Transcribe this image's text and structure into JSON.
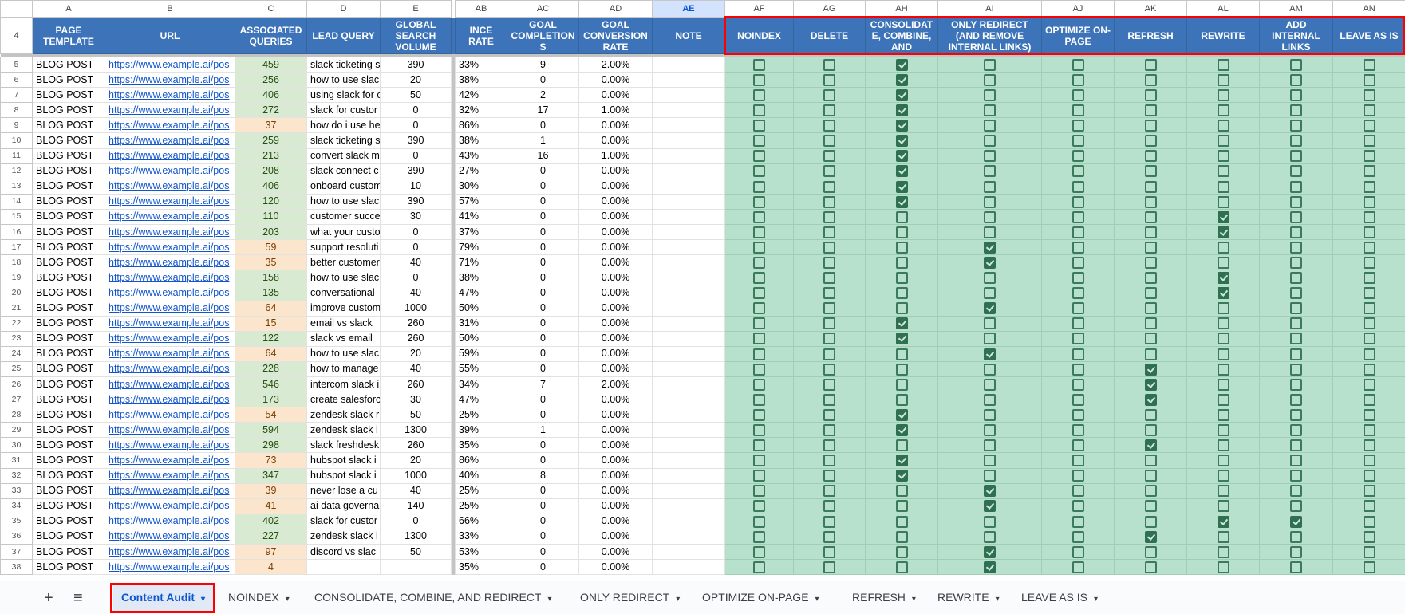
{
  "column_letters": [
    "A",
    "B",
    "C",
    "D",
    "E",
    "AB",
    "AC",
    "AD",
    "AE",
    "AF",
    "AG",
    "AH",
    "AI",
    "AJ",
    "AK",
    "AL",
    "AM",
    "AN"
  ],
  "selected_column": "AE",
  "header_row_number": "4",
  "headers": [
    "PAGE TEMPLATE",
    "URL",
    "ASSOCIATED QUERIES",
    "LEAD QUERY",
    "GLOBAL SEARCH VOLUME",
    "INCE RATE",
    "GOAL COMPLETION S",
    "GOAL CONVERSION RATE",
    "NOTE",
    "NOINDEX",
    "DELETE",
    "CONSOLIDAT E, COMBINE, AND",
    "ONLY REDIRECT (AND REMOVE INTERNAL LINKS)",
    "OPTIMIZE ON-PAGE",
    "REFRESH",
    "REWRITE",
    "ADD INTERNAL LINKS",
    "LEAVE AS IS"
  ],
  "action_columns": [
    "AF",
    "AG",
    "AH",
    "AI",
    "AJ",
    "AK",
    "AL",
    "AM",
    "AN"
  ],
  "colors": {
    "header_blue": "#3d74b9",
    "queries_high": "#d9ead3",
    "queries_low": "#fce5cd",
    "checkbox_area": "#b7e1cd",
    "highlight_box": "#ff0000"
  },
  "rows": [
    {
      "n": "5",
      "template": "BLOG POST",
      "url": "https://www.example.ai/pos",
      "queries": "459",
      "fill": "green",
      "lead": "slack ticketing s",
      "volume": "390",
      "bounce": "33%",
      "goals": "9",
      "conv": "2.00%",
      "note": "",
      "checked": [
        "AH"
      ]
    },
    {
      "n": "6",
      "template": "BLOG POST",
      "url": "https://www.example.ai/pos",
      "queries": "256",
      "fill": "green",
      "lead": "how to use slac",
      "volume": "20",
      "bounce": "38%",
      "goals": "0",
      "conv": "0.00%",
      "note": "",
      "checked": [
        "AH"
      ]
    },
    {
      "n": "7",
      "template": "BLOG POST",
      "url": "https://www.example.ai/pos",
      "queries": "406",
      "fill": "green",
      "lead": "using slack for c",
      "volume": "50",
      "bounce": "42%",
      "goals": "2",
      "conv": "0.00%",
      "note": "",
      "checked": [
        "AH"
      ]
    },
    {
      "n": "8",
      "template": "BLOG POST",
      "url": "https://www.example.ai/pos",
      "queries": "272",
      "fill": "green",
      "lead": "slack for custor",
      "volume": "0",
      "bounce": "32%",
      "goals": "17",
      "conv": "1.00%",
      "note": "",
      "checked": [
        "AH"
      ]
    },
    {
      "n": "9",
      "template": "BLOG POST",
      "url": "https://www.example.ai/pos",
      "queries": "37",
      "fill": "orange",
      "lead": "how do i use he",
      "volume": "0",
      "bounce": "86%",
      "goals": "0",
      "conv": "0.00%",
      "note": "",
      "checked": [
        "AH"
      ]
    },
    {
      "n": "10",
      "template": "BLOG POST",
      "url": "https://www.example.ai/pos",
      "queries": "259",
      "fill": "green",
      "lead": "slack ticketing s",
      "volume": "390",
      "bounce": "38%",
      "goals": "1",
      "conv": "0.00%",
      "note": "",
      "checked": [
        "AH"
      ]
    },
    {
      "n": "11",
      "template": "BLOG POST",
      "url": "https://www.example.ai/pos",
      "queries": "213",
      "fill": "green",
      "lead": "convert slack m",
      "volume": "0",
      "bounce": "43%",
      "goals": "16",
      "conv": "1.00%",
      "note": "",
      "checked": [
        "AH"
      ]
    },
    {
      "n": "12",
      "template": "BLOG POST",
      "url": "https://www.example.ai/pos",
      "queries": "208",
      "fill": "green",
      "lead": "slack connect c",
      "volume": "390",
      "bounce": "27%",
      "goals": "0",
      "conv": "0.00%",
      "note": "",
      "checked": [
        "AH"
      ]
    },
    {
      "n": "13",
      "template": "BLOG POST",
      "url": "https://www.example.ai/pos",
      "queries": "406",
      "fill": "green",
      "lead": "onboard custom",
      "volume": "10",
      "bounce": "30%",
      "goals": "0",
      "conv": "0.00%",
      "note": "",
      "checked": [
        "AH"
      ]
    },
    {
      "n": "14",
      "template": "BLOG POST",
      "url": "https://www.example.ai/pos",
      "queries": "120",
      "fill": "green",
      "lead": "how to use slac",
      "volume": "390",
      "bounce": "57%",
      "goals": "0",
      "conv": "0.00%",
      "note": "",
      "checked": [
        "AH"
      ]
    },
    {
      "n": "15",
      "template": "BLOG POST",
      "url": "https://www.example.ai/pos",
      "queries": "110",
      "fill": "green",
      "lead": "customer succe",
      "volume": "30",
      "bounce": "41%",
      "goals": "0",
      "conv": "0.00%",
      "note": "",
      "checked": [
        "AL"
      ]
    },
    {
      "n": "16",
      "template": "BLOG POST",
      "url": "https://www.example.ai/pos",
      "queries": "203",
      "fill": "green",
      "lead": "what your custo",
      "volume": "0",
      "bounce": "37%",
      "goals": "0",
      "conv": "0.00%",
      "note": "",
      "checked": [
        "AL"
      ]
    },
    {
      "n": "17",
      "template": "BLOG POST",
      "url": "https://www.example.ai/pos",
      "queries": "59",
      "fill": "orange",
      "lead": "support resoluti",
      "volume": "0",
      "bounce": "79%",
      "goals": "0",
      "conv": "0.00%",
      "note": "",
      "checked": [
        "AI"
      ]
    },
    {
      "n": "18",
      "template": "BLOG POST",
      "url": "https://www.example.ai/pos",
      "queries": "35",
      "fill": "orange",
      "lead": "better customer",
      "volume": "40",
      "bounce": "71%",
      "goals": "0",
      "conv": "0.00%",
      "note": "",
      "checked": [
        "AI"
      ]
    },
    {
      "n": "19",
      "template": "BLOG POST",
      "url": "https://www.example.ai/pos",
      "queries": "158",
      "fill": "green",
      "lead": "how to use slac",
      "volume": "0",
      "bounce": "38%",
      "goals": "0",
      "conv": "0.00%",
      "note": "",
      "checked": [
        "AL"
      ]
    },
    {
      "n": "20",
      "template": "BLOG POST",
      "url": "https://www.example.ai/pos",
      "queries": "135",
      "fill": "green",
      "lead": "conversational",
      "volume": "40",
      "bounce": "47%",
      "goals": "0",
      "conv": "0.00%",
      "note": "",
      "checked": [
        "AL"
      ]
    },
    {
      "n": "21",
      "template": "BLOG POST",
      "url": "https://www.example.ai/pos",
      "queries": "64",
      "fill": "orange",
      "lead": "improve custom",
      "volume": "1000",
      "bounce": "50%",
      "goals": "0",
      "conv": "0.00%",
      "note": "",
      "checked": [
        "AI"
      ]
    },
    {
      "n": "22",
      "template": "BLOG POST",
      "url": "https://www.example.ai/pos",
      "queries": "15",
      "fill": "orange",
      "lead": "email vs slack",
      "volume": "260",
      "bounce": "31%",
      "goals": "0",
      "conv": "0.00%",
      "note": "",
      "checked": [
        "AH"
      ]
    },
    {
      "n": "23",
      "template": "BLOG POST",
      "url": "https://www.example.ai/pos",
      "queries": "122",
      "fill": "green",
      "lead": "slack vs email",
      "volume": "260",
      "bounce": "50%",
      "goals": "0",
      "conv": "0.00%",
      "note": "",
      "checked": [
        "AH"
      ]
    },
    {
      "n": "24",
      "template": "BLOG POST",
      "url": "https://www.example.ai/pos",
      "queries": "64",
      "fill": "orange",
      "lead": "how to use slac",
      "volume": "20",
      "bounce": "59%",
      "goals": "0",
      "conv": "0.00%",
      "note": "",
      "checked": [
        "AI"
      ]
    },
    {
      "n": "25",
      "template": "BLOG POST",
      "url": "https://www.example.ai/pos",
      "queries": "228",
      "fill": "green",
      "lead": "how to manage",
      "volume": "40",
      "bounce": "55%",
      "goals": "0",
      "conv": "0.00%",
      "note": "",
      "checked": [
        "AK"
      ]
    },
    {
      "n": "26",
      "template": "BLOG POST",
      "url": "https://www.example.ai/pos",
      "queries": "546",
      "fill": "green",
      "lead": "intercom slack i",
      "volume": "260",
      "bounce": "34%",
      "goals": "7",
      "conv": "2.00%",
      "note": "",
      "checked": [
        "AK"
      ]
    },
    {
      "n": "27",
      "template": "BLOG POST",
      "url": "https://www.example.ai/pos",
      "queries": "173",
      "fill": "green",
      "lead": "create salesforc",
      "volume": "30",
      "bounce": "47%",
      "goals": "0",
      "conv": "0.00%",
      "note": "",
      "checked": [
        "AK"
      ]
    },
    {
      "n": "28",
      "template": "BLOG POST",
      "url": "https://www.example.ai/pos",
      "queries": "54",
      "fill": "orange",
      "lead": "zendesk slack r",
      "volume": "50",
      "bounce": "25%",
      "goals": "0",
      "conv": "0.00%",
      "note": "",
      "checked": [
        "AH"
      ]
    },
    {
      "n": "29",
      "template": "BLOG POST",
      "url": "https://www.example.ai/pos",
      "queries": "594",
      "fill": "green",
      "lead": "zendesk slack i",
      "volume": "1300",
      "bounce": "39%",
      "goals": "1",
      "conv": "0.00%",
      "note": "",
      "checked": [
        "AH"
      ]
    },
    {
      "n": "30",
      "template": "BLOG POST",
      "url": "https://www.example.ai/pos",
      "queries": "298",
      "fill": "green",
      "lead": "slack freshdesk",
      "volume": "260",
      "bounce": "35%",
      "goals": "0",
      "conv": "0.00%",
      "note": "",
      "checked": [
        "AK"
      ]
    },
    {
      "n": "31",
      "template": "BLOG POST",
      "url": "https://www.example.ai/pos",
      "queries": "73",
      "fill": "orange",
      "lead": "hubspot slack i",
      "volume": "20",
      "bounce": "86%",
      "goals": "0",
      "conv": "0.00%",
      "note": "",
      "checked": [
        "AH"
      ]
    },
    {
      "n": "32",
      "template": "BLOG POST",
      "url": "https://www.example.ai/pos",
      "queries": "347",
      "fill": "green",
      "lead": "hubspot slack i",
      "volume": "1000",
      "bounce": "40%",
      "goals": "8",
      "conv": "0.00%",
      "note": "",
      "checked": [
        "AH"
      ]
    },
    {
      "n": "33",
      "template": "BLOG POST",
      "url": "https://www.example.ai/pos",
      "queries": "39",
      "fill": "orange",
      "lead": "never lose a cu",
      "volume": "40",
      "bounce": "25%",
      "goals": "0",
      "conv": "0.00%",
      "note": "",
      "checked": [
        "AI"
      ]
    },
    {
      "n": "34",
      "template": "BLOG POST",
      "url": "https://www.example.ai/pos",
      "queries": "41",
      "fill": "orange",
      "lead": "ai data governa",
      "volume": "140",
      "bounce": "25%",
      "goals": "0",
      "conv": "0.00%",
      "note": "",
      "checked": [
        "AI"
      ]
    },
    {
      "n": "35",
      "template": "BLOG POST",
      "url": "https://www.example.ai/pos",
      "queries": "402",
      "fill": "green",
      "lead": "slack for custor",
      "volume": "0",
      "bounce": "66%",
      "goals": "0",
      "conv": "0.00%",
      "note": "",
      "checked": [
        "AL",
        "AM"
      ]
    },
    {
      "n": "36",
      "template": "BLOG POST",
      "url": "https://www.example.ai/pos",
      "queries": "227",
      "fill": "green",
      "lead": "zendesk slack i",
      "volume": "1300",
      "bounce": "33%",
      "goals": "0",
      "conv": "0.00%",
      "note": "",
      "checked": [
        "AK"
      ]
    },
    {
      "n": "37",
      "template": "BLOG POST",
      "url": "https://www.example.ai/pos",
      "queries": "97",
      "fill": "orange",
      "lead": "discord vs slac",
      "volume": "50",
      "bounce": "53%",
      "goals": "0",
      "conv": "0.00%",
      "note": "",
      "checked": [
        "AI"
      ]
    },
    {
      "n": "38",
      "template": "BLOG POST",
      "url": "https://www.example.ai/pos",
      "queries": "4",
      "fill": "orange",
      "lead": "",
      "volume": "",
      "bounce": "35%",
      "goals": "0",
      "conv": "0.00%",
      "note": "",
      "checked": [
        "AI"
      ]
    }
  ],
  "tabbar": {
    "add_icon": "+",
    "menu_icon": "≡",
    "caret": "▾",
    "tabs": [
      {
        "label": "Content Audit",
        "active": true
      },
      {
        "label": "NOINDEX"
      },
      {
        "label": "CONSOLIDATE, COMBINE, AND REDIRECT"
      },
      {
        "label": "ONLY REDIRECT"
      },
      {
        "label": "OPTIMIZE ON-PAGE"
      },
      {
        "label": "REFRESH"
      },
      {
        "label": "REWRITE"
      },
      {
        "label": "LEAVE AS IS"
      }
    ]
  }
}
